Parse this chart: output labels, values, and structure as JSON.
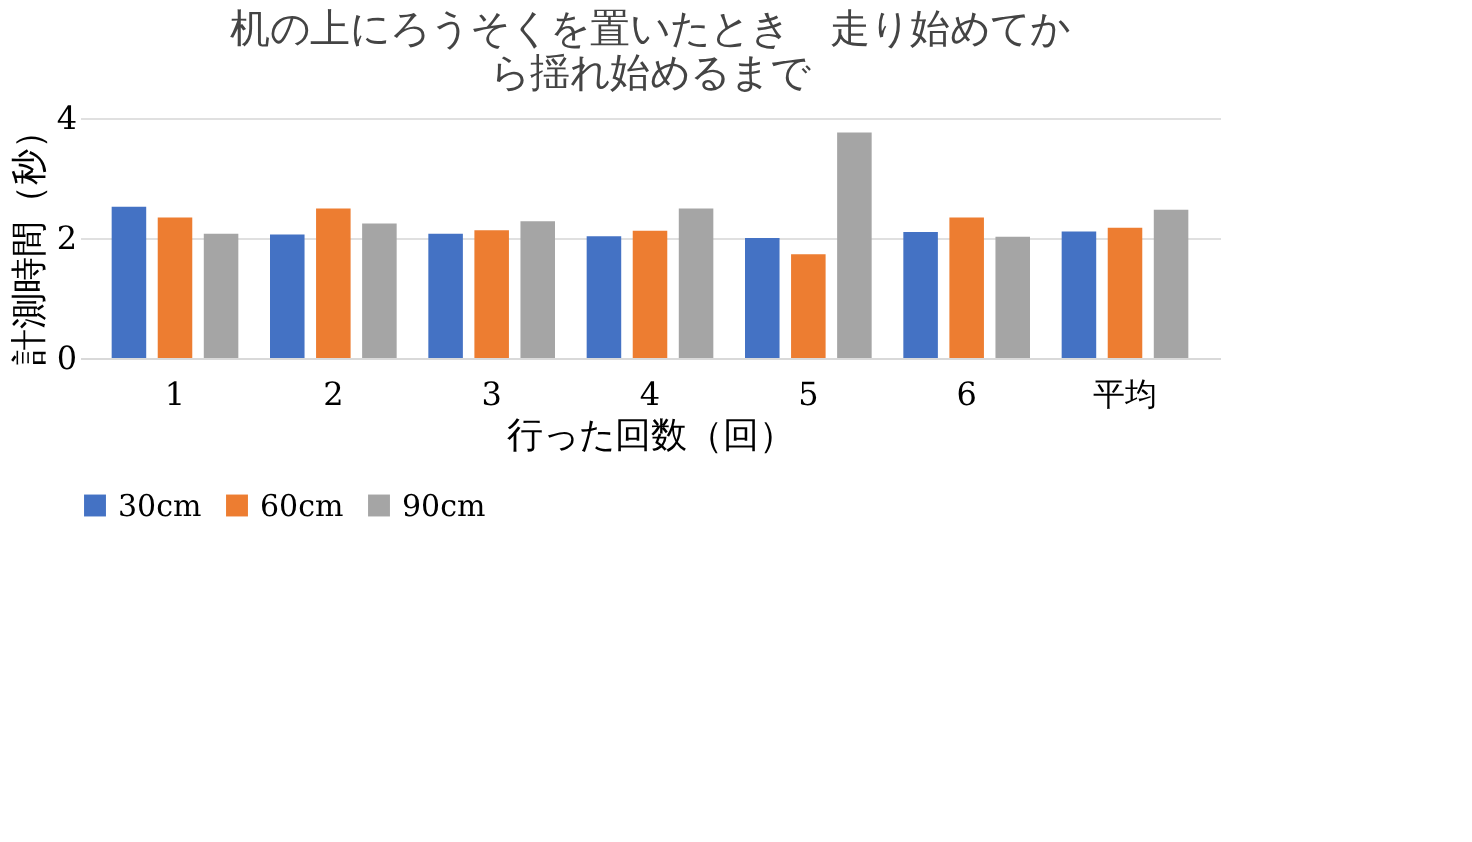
{
  "chart_data": {
    "type": "bar",
    "title": [
      "机の上にろうそくを置いたとき　走り始めてか",
      "ら揺れ始めるまで"
    ],
    "xlabel": "行った回数（回）",
    "ylabel": "計測時間（秒）",
    "categories": [
      "1",
      "2",
      "3",
      "4",
      "5",
      "6",
      "平均"
    ],
    "series": [
      {
        "name": "30cm",
        "color": "#4472c4",
        "values": [
          2.52,
          2.06,
          2.07,
          2.03,
          2.0,
          2.1,
          2.11
        ]
      },
      {
        "name": "60cm",
        "color": "#ed7d31",
        "values": [
          2.34,
          2.49,
          2.13,
          2.12,
          1.73,
          2.34,
          2.17
        ]
      },
      {
        "name": "90cm",
        "color": "#a5a5a5",
        "values": [
          2.07,
          2.24,
          2.28,
          2.49,
          3.76,
          2.02,
          2.47
        ]
      }
    ],
    "ylim": [
      0,
      4
    ],
    "yticks": [
      0,
      2,
      4
    ],
    "grid": "y",
    "legend": "bottom"
  }
}
